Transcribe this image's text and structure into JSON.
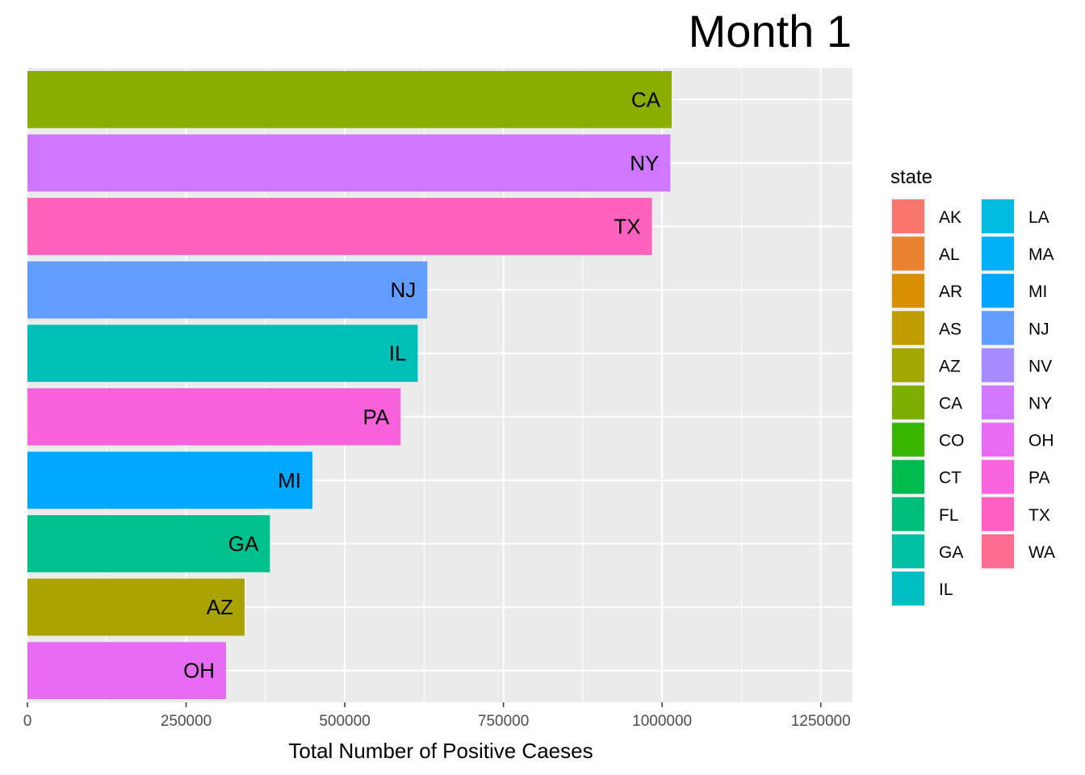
{
  "chart_data": {
    "type": "bar",
    "orientation": "horizontal",
    "title": "Month 1",
    "xlabel": "Total Number of Positive Caeses",
    "ylabel": "",
    "xlim": [
      0,
      1300000
    ],
    "x_ticks": [
      0,
      250000,
      500000,
      750000,
      1000000,
      1250000
    ],
    "x_tick_labels": [
      "0",
      "250000",
      "500000",
      "750000",
      "1000000",
      "1250000"
    ],
    "grid": true,
    "panel_background": "#ebebeb",
    "bars": [
      {
        "state": "CA",
        "value": 1015000,
        "color": "#8AAD00"
      },
      {
        "state": "NY",
        "value": 1013000,
        "color": "#CF78FF"
      },
      {
        "state": "TX",
        "value": 984000,
        "color": "#FF62BC"
      },
      {
        "state": "NJ",
        "value": 630000,
        "color": "#619CFF"
      },
      {
        "state": "IL",
        "value": 615000,
        "color": "#00BFB7"
      },
      {
        "state": "PA",
        "value": 588000,
        "color": "#FA62DB"
      },
      {
        "state": "MI",
        "value": 449000,
        "color": "#00A9FF"
      },
      {
        "state": "GA",
        "value": 382000,
        "color": "#00C08D"
      },
      {
        "state": "AZ",
        "value": 342000,
        "color": "#AAA200"
      },
      {
        "state": "OH",
        "value": 313000,
        "color": "#E76BF3"
      }
    ],
    "legend": {
      "title": "state",
      "placement": "right",
      "columns": [
        [
          {
            "label": "AK",
            "color": "#F8766D"
          },
          {
            "label": "AL",
            "color": "#EA8331"
          },
          {
            "label": "AR",
            "color": "#D89000"
          },
          {
            "label": "AS",
            "color": "#C09B00"
          },
          {
            "label": "AZ",
            "color": "#A3A500"
          },
          {
            "label": "CA",
            "color": "#7CAE00"
          },
          {
            "label": "CO",
            "color": "#39B600"
          },
          {
            "label": "CT",
            "color": "#00BB4E"
          },
          {
            "label": "FL",
            "color": "#00BF7D"
          },
          {
            "label": "GA",
            "color": "#00C1A3"
          },
          {
            "label": "IL",
            "color": "#00BFC4"
          }
        ],
        [
          {
            "label": "LA",
            "color": "#00BAE0"
          },
          {
            "label": "MA",
            "color": "#00B0F6"
          },
          {
            "label": "MI",
            "color": "#00A5FF"
          },
          {
            "label": "NJ",
            "color": "#619CFF"
          },
          {
            "label": "NV",
            "color": "#A58AFF"
          },
          {
            "label": "NY",
            "color": "#CF78FF"
          },
          {
            "label": "OH",
            "color": "#E76BF3"
          },
          {
            "label": "PA",
            "color": "#F864DE"
          },
          {
            "label": "TX",
            "color": "#FF61C3"
          },
          {
            "label": "WA",
            "color": "#FF6C91"
          }
        ]
      ]
    }
  }
}
